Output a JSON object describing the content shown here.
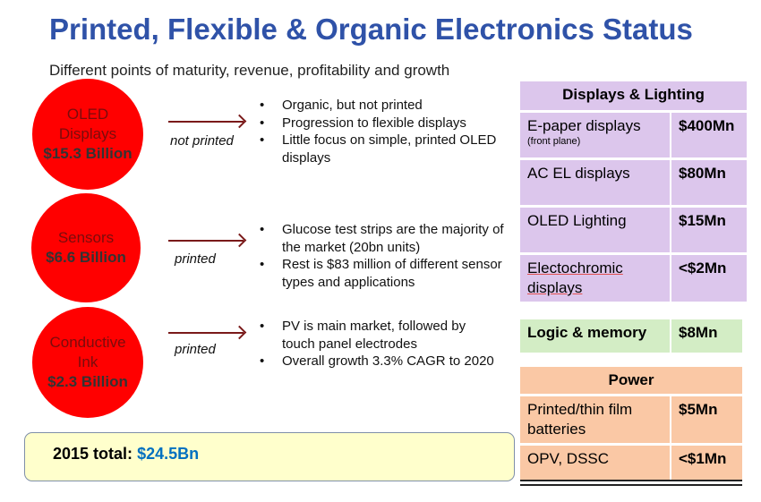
{
  "title": "Printed, Flexible & Organic Electronics Status",
  "subtitle": "Different points of maturity, revenue, profitability and growth",
  "segments": [
    {
      "name1": "OLED",
      "name2": "Displays",
      "value": "$15.3 Billion",
      "arrow_label": "not printed",
      "bullets": [
        "Organic, but not printed",
        "Progression to flexible displays",
        "Little focus on simple, printed OLED displays"
      ]
    },
    {
      "name1": "Sensors",
      "name2": "",
      "value": "$6.6 Billion",
      "arrow_label": "printed",
      "bullets": [
        "Glucose test strips are the majority of the market (20bn units)",
        "Rest is $83 million of different sensor types and applications"
      ]
    },
    {
      "name1": "Conductive",
      "name2": "Ink",
      "value": "$2.3 Billion",
      "arrow_label": "printed",
      "bullets": [
        "PV is main market, followed by touch panel electrodes",
        "Overall growth 3.3% CAGR to 2020"
      ]
    }
  ],
  "total": {
    "label": "2015 total:",
    "value": "$24.5Bn"
  },
  "displays_table": {
    "header": "Displays & Lighting",
    "rows": [
      {
        "item": "E-paper displays",
        "note": "(front plane)",
        "value": "$400Mn"
      },
      {
        "item": "AC EL displays",
        "value": "$80Mn"
      },
      {
        "item": "OLED Lighting",
        "value": "$15Mn"
      },
      {
        "item": "Electochromic displays",
        "value": "<$2Mn"
      }
    ]
  },
  "logic_table": {
    "item": "Logic & memory",
    "value": "$8Mn"
  },
  "power_table": {
    "header": "Power",
    "rows": [
      {
        "item": "Printed/thin film batteries",
        "value": "$5Mn"
      },
      {
        "item": "OPV, DSSC",
        "value": "<$1Mn"
      }
    ]
  },
  "colors": {
    "title": "#2f52a8",
    "circle": "#ff0000",
    "displays": "#dcc6ec",
    "logic": "#d3edc5",
    "power": "#fac8a5",
    "total_value": "#0070c0"
  }
}
